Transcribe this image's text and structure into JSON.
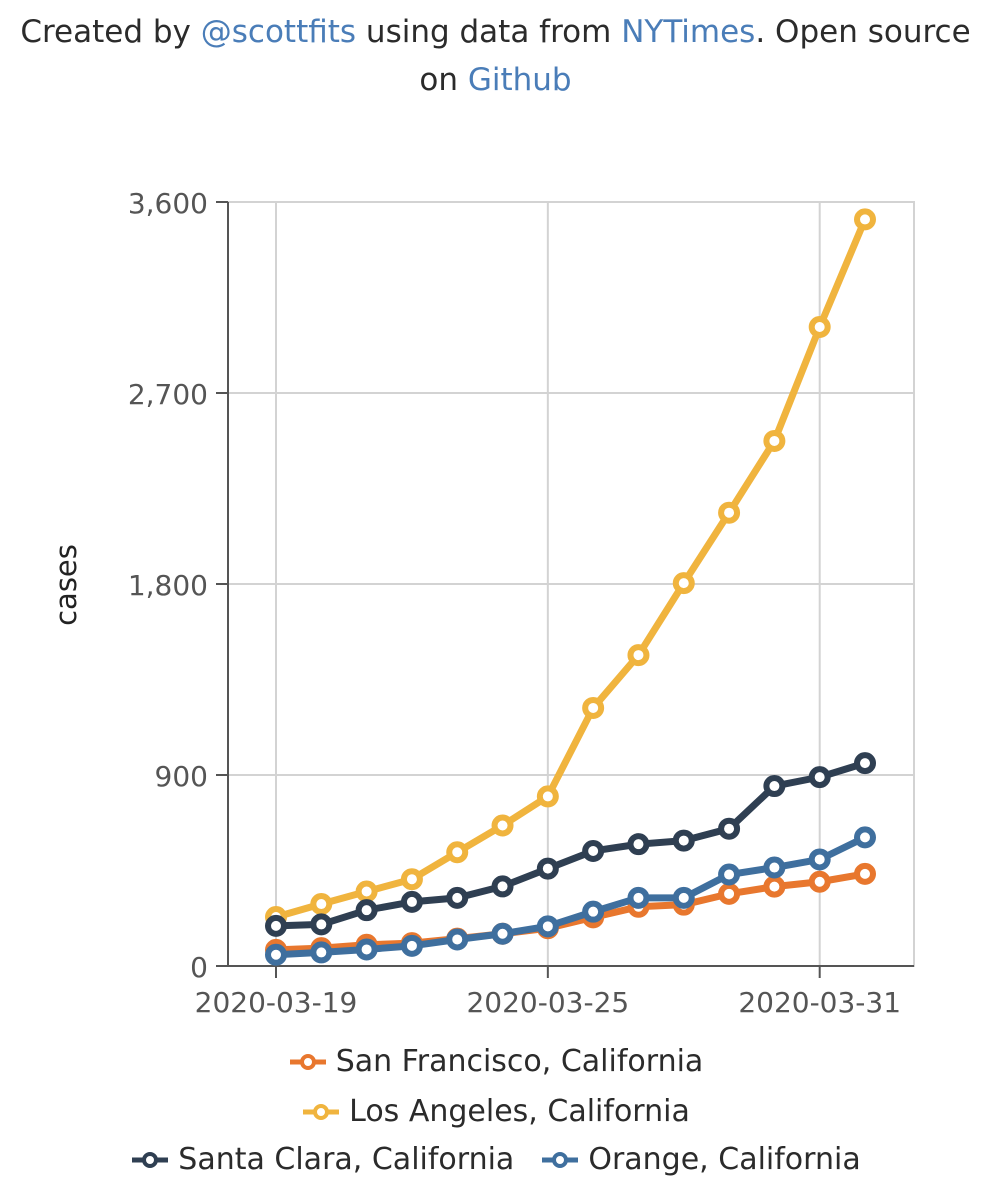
{
  "credit": {
    "prefix": "Created by ",
    "author": "@scottfits",
    "middle": " using data from ",
    "source": "NYTimes",
    "suffix": ". Open source on ",
    "repo": "Github"
  },
  "colors": {
    "link": "#4a7db8",
    "grid": "#d3d3d3",
    "axis": "#555555"
  },
  "chart_data": {
    "type": "line",
    "title": "",
    "xlabel": "",
    "ylabel": "cases",
    "ylim": [
      0,
      3600
    ],
    "yticks": [
      0,
      900,
      1800,
      2700,
      3600
    ],
    "ytick_labels": [
      "0",
      "900",
      "1,800",
      "2,700",
      "3,600"
    ],
    "xlim": [
      "2020-03-19",
      "2020-04-01"
    ],
    "xticks": [
      "2020-03-19",
      "2020-03-25",
      "2020-03-31"
    ],
    "grid": true,
    "legend": "bottom",
    "x": [
      "2020-03-19",
      "2020-03-20",
      "2020-03-21",
      "2020-03-22",
      "2020-03-23",
      "2020-03-24",
      "2020-03-25",
      "2020-03-26",
      "2020-03-27",
      "2020-03-28",
      "2020-03-29",
      "2020-03-30",
      "2020-03-31",
      "2020-04-01"
    ],
    "series": [
      {
        "name": "San Francisco, California",
        "color": "#e8772e",
        "values": [
          76,
          84,
          100,
          108,
          129,
          152,
          178,
          229,
          279,
          289,
          340,
          374,
          397,
          434
        ]
      },
      {
        "name": "Los Angeles, California",
        "color": "#f0b43e",
        "values": [
          231,
          292,
          351,
          409,
          536,
          662,
          799,
          1216,
          1465,
          1804,
          2136,
          2474,
          3011,
          3518
        ]
      },
      {
        "name": "Santa Clara, California",
        "color": "#2f3f52",
        "values": [
          189,
          196,
          263,
          302,
          321,
          375,
          459,
          542,
          574,
          591,
          647,
          848,
          890,
          956
        ]
      },
      {
        "name": "Orange, California",
        "color": "#3f6f9e",
        "values": [
          53,
          64,
          78,
          95,
          125,
          152,
          187,
          256,
          321,
          321,
          431,
          464,
          502,
          606
        ]
      }
    ]
  }
}
